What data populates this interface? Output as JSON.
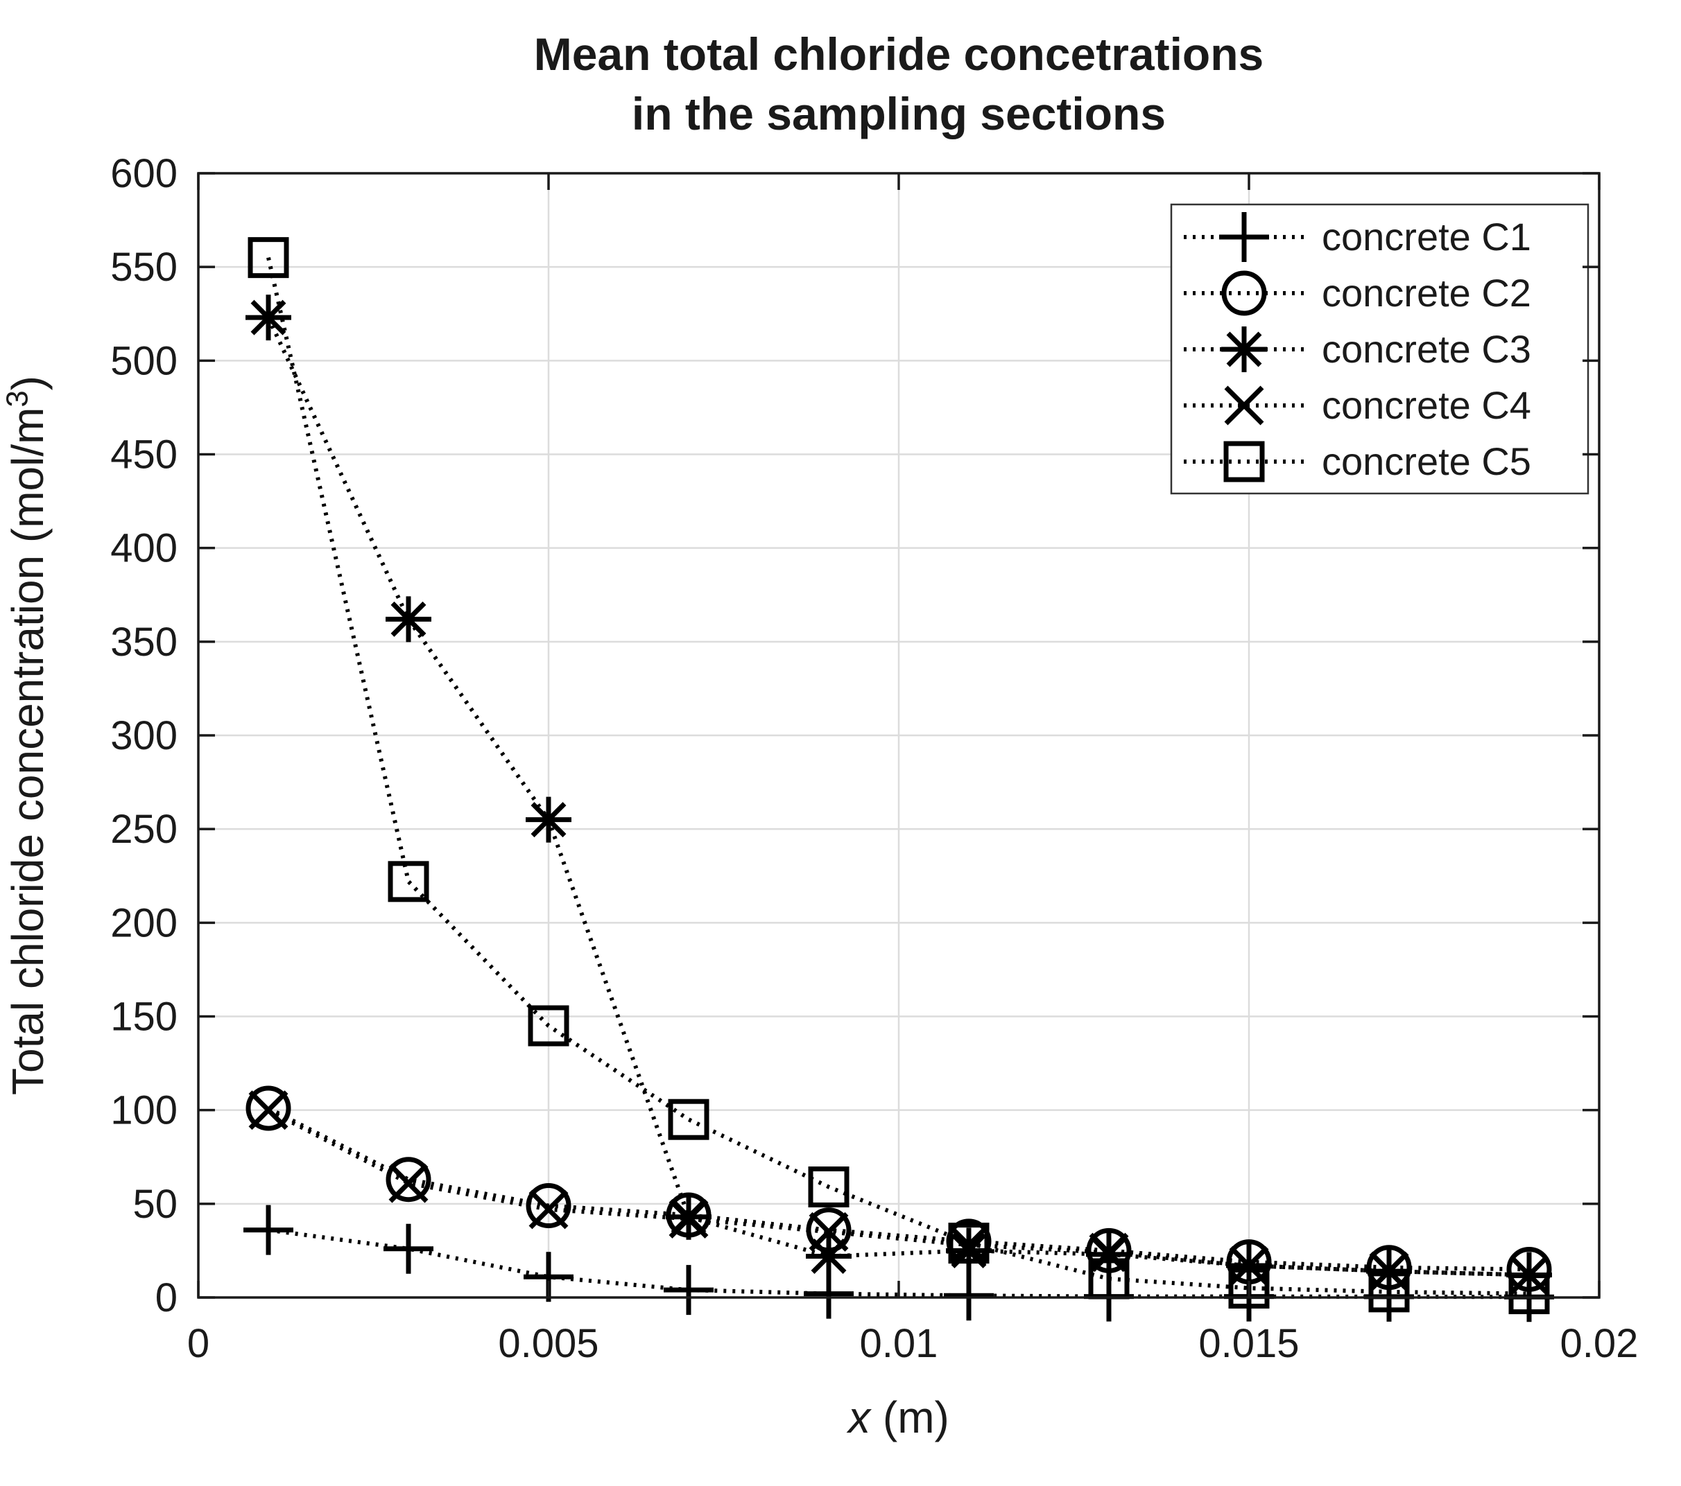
{
  "figure": {
    "background": "#ffffff",
    "axis_color": "#1a1a1a",
    "grid_color": "#dcdcdc",
    "line_color": "#000000",
    "legend_border_color": "#333333",
    "legend_background": "#ffffff"
  },
  "labels": {
    "title_line1": "Mean total chloride concetrations",
    "title_line2": "in the sampling sections",
    "ylabel_base": "Total chloride concentration (mol/m",
    "ylabel_sup": "3",
    "ylabel_close": ")",
    "xlabel_var": "x",
    "xlabel_rest": " (m)"
  },
  "chart_data": {
    "type": "line",
    "title": "Mean total chloride concetrations in the sampling sections",
    "xlabel": "x (m)",
    "ylabel": "Total chloride concentration (mol/m³)",
    "xlim": [
      0,
      0.02
    ],
    "ylim": [
      0,
      600
    ],
    "grid": true,
    "legend_position": "top-right",
    "line_style": "dotted",
    "xticks": {
      "values": [
        0,
        0.005,
        0.01,
        0.015,
        0.02
      ],
      "labels": [
        "0",
        "0.005",
        "0.01",
        "0.015",
        "0.02"
      ]
    },
    "yticks": {
      "values": [
        0,
        50,
        100,
        150,
        200,
        250,
        300,
        350,
        400,
        450,
        500,
        550,
        600
      ],
      "labels": [
        "0",
        "50",
        "100",
        "150",
        "200",
        "250",
        "300",
        "350",
        "400",
        "450",
        "500",
        "550",
        "600"
      ]
    },
    "x": [
      0.001,
      0.003,
      0.005,
      0.007,
      0.009,
      0.011,
      0.013,
      0.015,
      0.017,
      0.019
    ],
    "series": [
      {
        "name": "concrete C1",
        "marker": "plus",
        "values": [
          36,
          26,
          11,
          4,
          2,
          1,
          0.5,
          0.5,
          0.4,
          0.3
        ]
      },
      {
        "name": "concrete C2",
        "marker": "circle",
        "values": [
          101,
          63,
          49,
          44,
          36,
          30,
          25,
          19,
          16,
          15
        ]
      },
      {
        "name": "concrete C3",
        "marker": "asterisk",
        "values": [
          523,
          362,
          255,
          43,
          22,
          25,
          23,
          17,
          14,
          12
        ]
      },
      {
        "name": "concrete C4",
        "marker": "x",
        "values": [
          100,
          61,
          47,
          42,
          35,
          28,
          24,
          17,
          14,
          12
        ]
      },
      {
        "name": "concrete C5",
        "marker": "square",
        "values": [
          555,
          222,
          145,
          95,
          59,
          29,
          10,
          5,
          3,
          2
        ]
      }
    ]
  }
}
